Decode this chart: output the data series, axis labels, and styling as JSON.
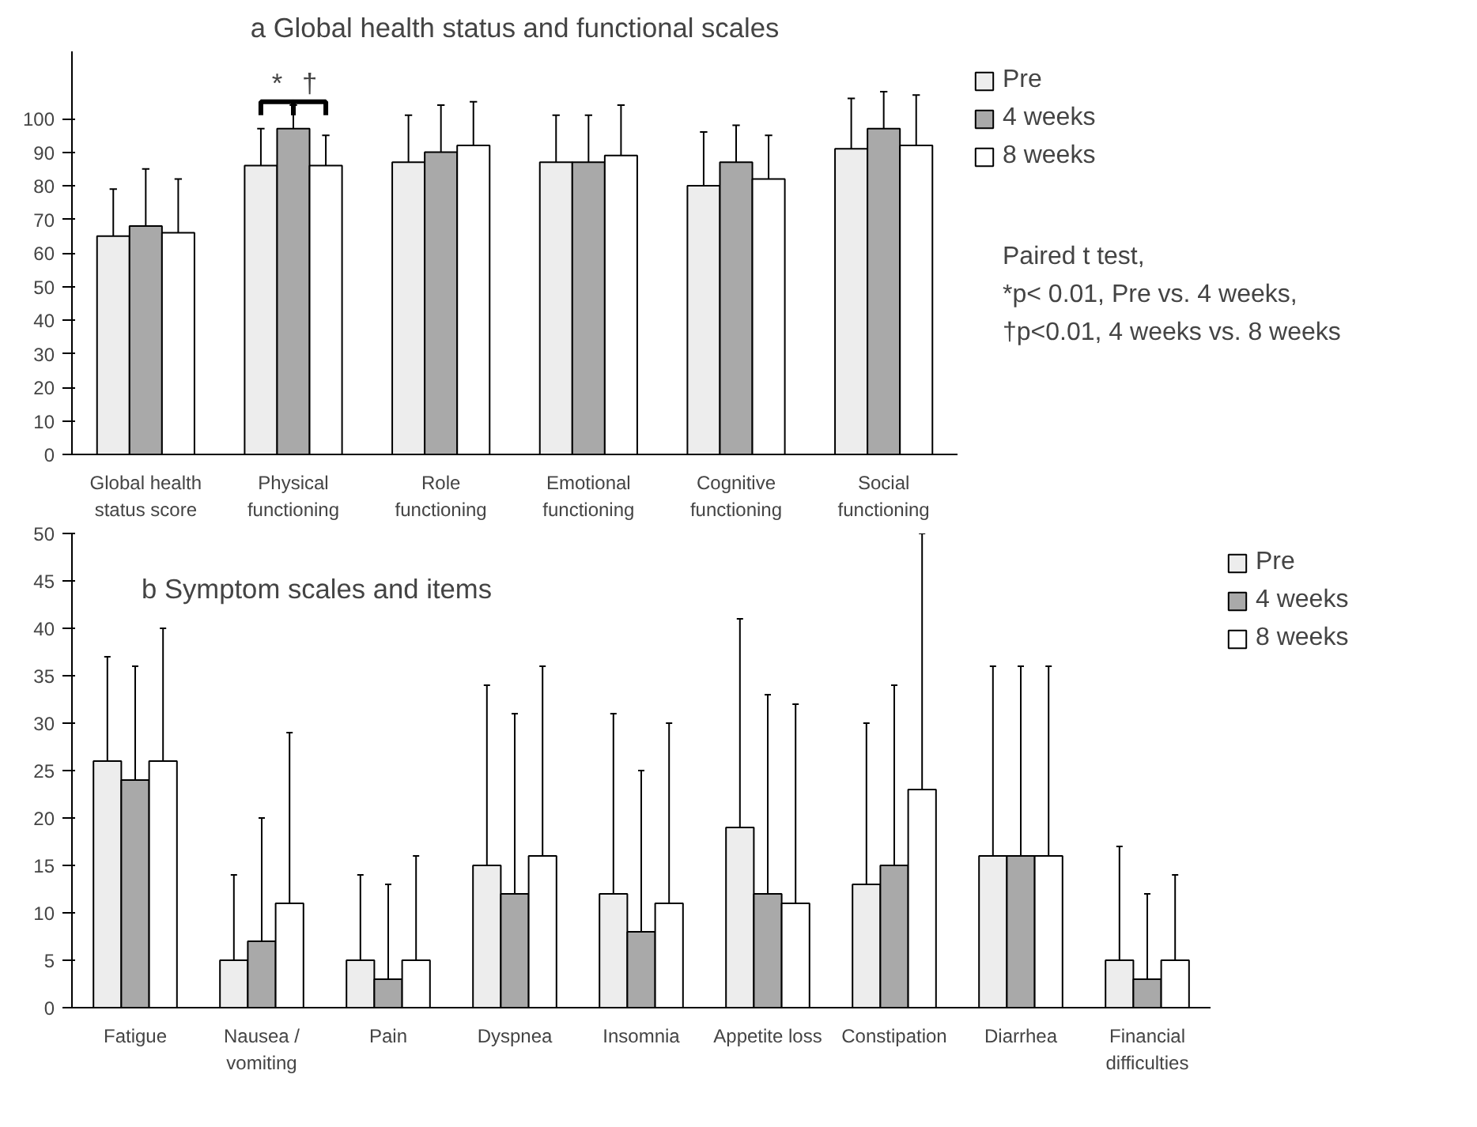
{
  "chart_data": [
    {
      "type": "bar",
      "title": "a Global health status and functional scales",
      "categories": [
        "Global health status score",
        "Physical functioning",
        "Role functioning",
        "Emotional functioning",
        "Cognitive functioning",
        "Social functioning"
      ],
      "series": [
        {
          "name": "Pre",
          "color": "#ededed",
          "values": [
            65,
            86,
            87,
            87,
            80,
            91
          ],
          "errors": [
            [
              65,
              79
            ],
            [
              86,
              97
            ],
            [
              87,
              101
            ],
            [
              87,
              101
            ],
            [
              80,
              96
            ],
            [
              91,
              106
            ]
          ]
        },
        {
          "name": "4 weeks",
          "color": "#a9a9a9",
          "values": [
            68,
            97,
            90,
            87,
            87,
            97
          ],
          "errors": [
            [
              68,
              85
            ],
            [
              97,
              104
            ],
            [
              90,
              104
            ],
            [
              87,
              101
            ],
            [
              87,
              98
            ],
            [
              97,
              108
            ]
          ]
        },
        {
          "name": "8 weeks",
          "color": "#ffffff",
          "values": [
            66,
            86,
            92,
            89,
            82,
            92
          ],
          "errors": [
            [
              66,
              82
            ],
            [
              86,
              95
            ],
            [
              92,
              105
            ],
            [
              89,
              104
            ],
            [
              82,
              95
            ],
            [
              92,
              107
            ]
          ]
        }
      ],
      "ylim": [
        0,
        120
      ],
      "yticks": [
        0,
        10,
        20,
        30,
        40,
        50,
        60,
        70,
        80,
        90,
        100
      ],
      "grid": false,
      "legend": "right",
      "annotations": [
        {
          "text": "*",
          "x": "Physical functioning",
          "y": 97
        },
        {
          "text": "†",
          "x": "Physical functioning",
          "y": 97
        },
        "Paired t test,",
        "*p< 0.01, Pre vs. 4 weeks,",
        "†p<0.01, 4 weeks vs. 8 weeks"
      ]
    },
    {
      "type": "bar",
      "title": "b Symptom scales and items",
      "categories": [
        "Fatigue",
        "Nausea / vomiting",
        "Pain",
        "Dyspnea",
        "Insomnia",
        "Appetite loss",
        "Constipation",
        "Diarrhea",
        "Financial difficulties"
      ],
      "series": [
        {
          "name": "Pre",
          "color": "#ededed",
          "values": [
            26,
            5,
            5,
            15,
            12,
            19,
            13,
            16,
            5
          ],
          "errors": [
            [
              26,
              37
            ],
            [
              5,
              14
            ],
            [
              5,
              14
            ],
            [
              15,
              34
            ],
            [
              12,
              31
            ],
            [
              19,
              41
            ],
            [
              13,
              30
            ],
            [
              16,
              36
            ],
            [
              5,
              17
            ]
          ]
        },
        {
          "name": "4 weeks",
          "color": "#a9a9a9",
          "values": [
            24,
            7,
            3,
            12,
            8,
            12,
            15,
            16,
            3
          ],
          "errors": [
            [
              24,
              36
            ],
            [
              7,
              20
            ],
            [
              3,
              13
            ],
            [
              12,
              31
            ],
            [
              8,
              25
            ],
            [
              12,
              33
            ],
            [
              15,
              34
            ],
            [
              16,
              36
            ],
            [
              3,
              12
            ]
          ]
        },
        {
          "name": "8 weeks",
          "color": "#ffffff",
          "values": [
            26,
            11,
            5,
            16,
            11,
            11,
            23,
            16,
            5
          ],
          "errors": [
            [
              26,
              40
            ],
            [
              11,
              29
            ],
            [
              5,
              16
            ],
            [
              16,
              36
            ],
            [
              11,
              30
            ],
            [
              11,
              32
            ],
            [
              23,
              50
            ],
            [
              16,
              36
            ],
            [
              5,
              14
            ]
          ]
        }
      ],
      "ylim": [
        0,
        50
      ],
      "yticks": [
        0,
        5,
        10,
        15,
        20,
        25,
        30,
        35,
        40,
        45,
        50
      ],
      "grid": false,
      "legend": "right"
    }
  ]
}
